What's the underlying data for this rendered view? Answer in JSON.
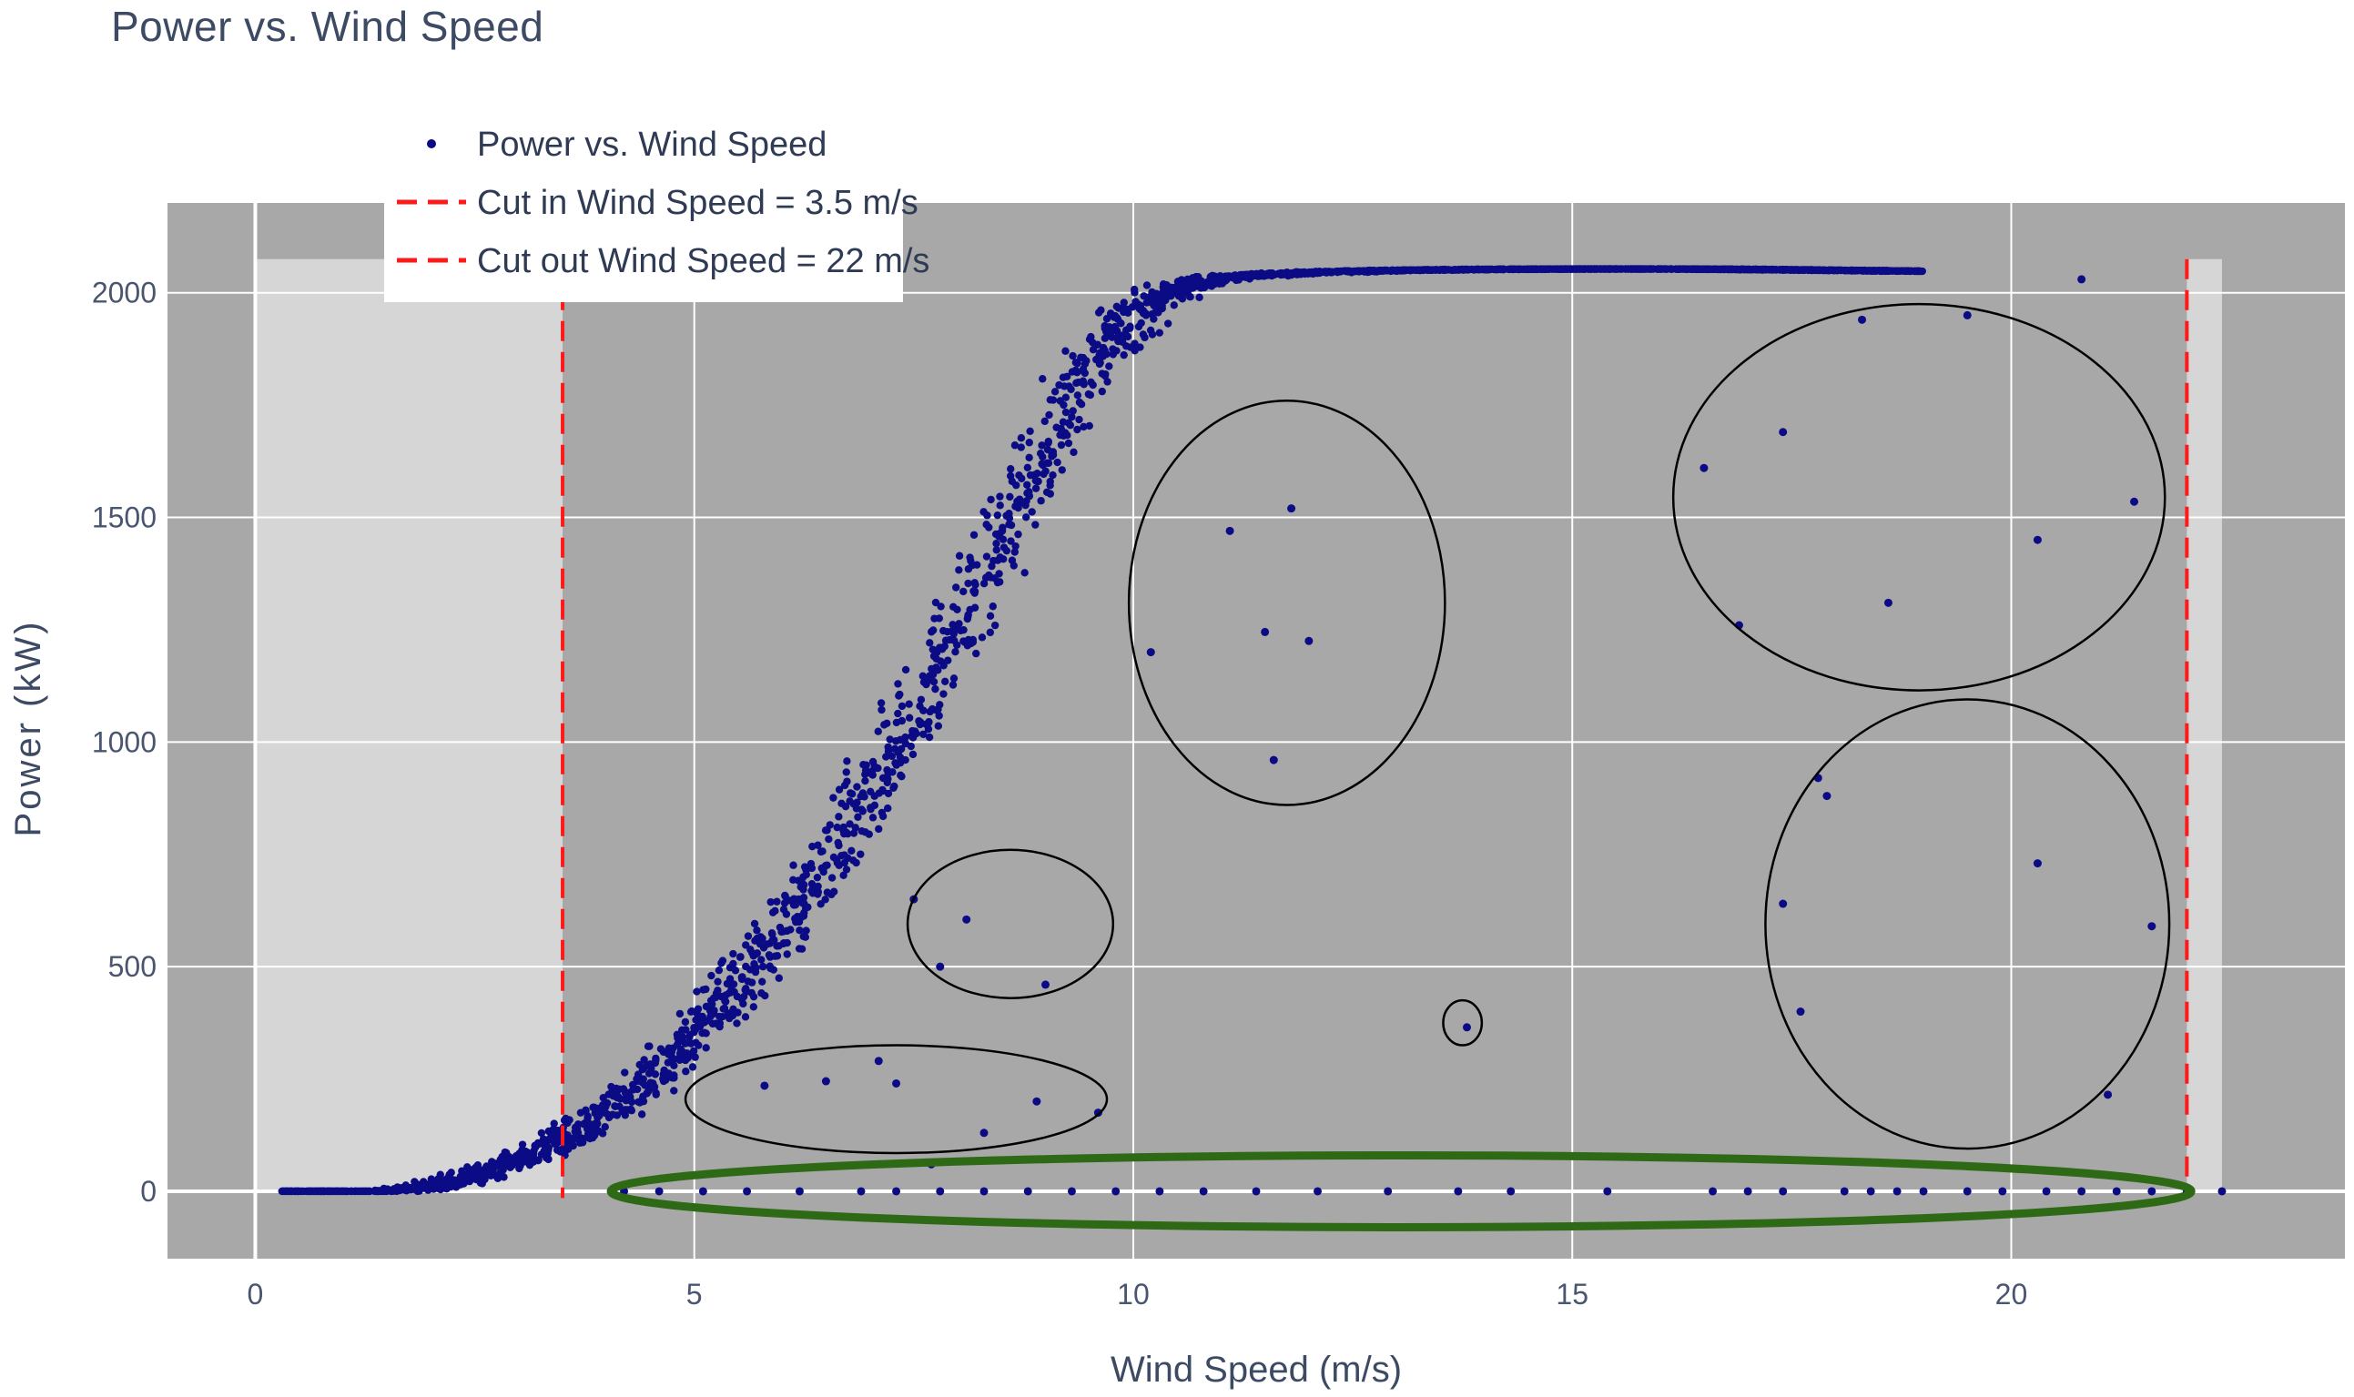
{
  "title": "Power vs. Wind Speed",
  "chart_data": {
    "type": "scatter",
    "title": "Power vs. Wind Speed",
    "xlabel": "Wind Speed (m/s)",
    "ylabel": "Power (kW)",
    "xlim": [
      -1,
      23.8
    ],
    "ylim": [
      -150,
      2200
    ],
    "x_ticks": [
      0,
      5,
      10,
      15,
      20
    ],
    "y_ticks": [
      0,
      500,
      1000,
      1500,
      2000
    ],
    "grid": true,
    "legend_position": "top-left",
    "shaded_regions": [
      {
        "x": [
          0,
          3.5
        ],
        "y": [
          0,
          2075
        ]
      },
      {
        "x": [
          22,
          22.4
        ],
        "y": [
          0,
          2075
        ]
      }
    ],
    "series": [
      {
        "name": "Power vs. Wind Speed",
        "kind": "markers",
        "color": "#0b0b86",
        "power_curve": {
          "x": [
            0.3,
            1.5,
            2.0,
            2.5,
            3.0,
            3.5,
            4.0,
            4.5,
            5.0,
            5.5,
            6.0,
            6.5,
            7.0,
            7.5,
            8.0,
            8.5,
            9.0,
            9.5,
            10.0,
            10.5,
            11.0,
            12.0,
            13.0,
            14.0,
            15.0,
            16.0,
            17.0,
            18.0,
            19.0
          ],
          "y": [
            0,
            0,
            10,
            35,
            70,
            110,
            175,
            250,
            345,
            455,
            580,
            720,
            880,
            1060,
            1250,
            1450,
            1650,
            1830,
            1950,
            2010,
            2035,
            2045,
            2050,
            2052,
            2053,
            2053,
            2052,
            2050,
            2048
          ]
        },
        "anomalies": {
          "x": [
            11.8,
            11.1,
            10.2,
            11.5,
            12.0,
            11.6,
            7.5,
            8.1,
            7.8,
            9.0,
            5.8,
            6.5,
            7.1,
            7.3,
            8.3,
            8.9,
            9.6,
            7.7,
            13.8,
            16.5,
            17.4,
            20.3,
            21.4,
            16.9,
            18.6,
            17.8,
            17.9,
            20.3,
            17.4,
            17.6,
            21.6,
            21.1,
            18.3,
            19.5,
            20.8
          ],
          "y": [
            1520,
            1470,
            1200,
            1245,
            1225,
            960,
            650,
            605,
            500,
            460,
            235,
            245,
            290,
            240,
            130,
            200,
            175,
            60,
            365,
            1610,
            1690,
            1450,
            1535,
            1260,
            1310,
            920,
            880,
            730,
            640,
            400,
            590,
            215,
            1940,
            1950,
            2030
          ]
        },
        "zero_power_x": [
          4.2,
          4.6,
          5.1,
          5.6,
          6.2,
          6.9,
          7.3,
          7.8,
          8.3,
          8.8,
          9.3,
          9.8,
          10.3,
          10.8,
          11.4,
          12.1,
          12.9,
          13.7,
          14.3,
          15.4,
          16.6,
          17.0,
          17.4,
          18.1,
          18.4,
          18.7,
          19.0,
          19.5,
          19.9,
          20.4,
          20.8,
          21.2,
          21.6,
          22.0,
          22.4
        ]
      },
      {
        "name": "Cut in Wind Speed = 3.5 m/s",
        "kind": "vline",
        "x": 3.5,
        "color": "#ff1a1a",
        "dash": "dashed"
      },
      {
        "name": "Cut out Wind Speed = 22 m/s",
        "kind": "vline",
        "x": 22,
        "color": "#ff1a1a",
        "dash": "dashed"
      }
    ],
    "annotations": [
      {
        "shape": "ellipse",
        "color": "#000000",
        "center": [
          11.75,
          1310
        ],
        "radii": [
          1.8,
          450
        ]
      },
      {
        "shape": "ellipse",
        "color": "#000000",
        "center": [
          8.6,
          595
        ],
        "radii": [
          1.17,
          165
        ]
      },
      {
        "shape": "ellipse",
        "color": "#000000",
        "center": [
          7.3,
          205
        ],
        "radii": [
          2.4,
          120
        ]
      },
      {
        "shape": "ellipse",
        "color": "#000000",
        "center": [
          13.75,
          375
        ],
        "radii": [
          0.22,
          50
        ]
      },
      {
        "shape": "ellipse",
        "color": "#000000",
        "center": [
          18.95,
          1545
        ],
        "radii": [
          2.8,
          430
        ]
      },
      {
        "shape": "ellipse",
        "color": "#000000",
        "center": [
          19.5,
          595
        ],
        "radii": [
          2.3,
          500
        ]
      },
      {
        "shape": "ellipse",
        "color": "#2e6a16",
        "center": [
          13.05,
          0
        ],
        "radii": [
          9.0,
          80
        ]
      }
    ]
  }
}
